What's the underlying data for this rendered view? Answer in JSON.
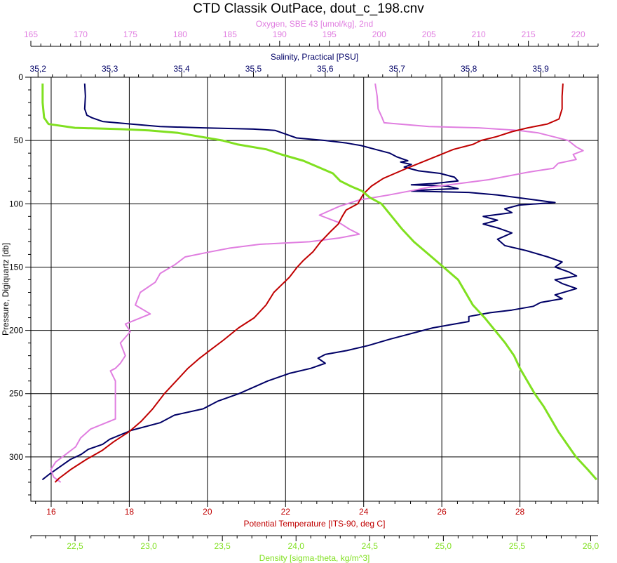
{
  "chart_data": {
    "type": "line",
    "title": "CTD Classik OutPace, dout_c_198.cnv",
    "grid": true,
    "y_axis": {
      "label": "Pressure, Digiquartz [db]",
      "range": [
        0,
        335
      ],
      "ticks": [
        "0",
        "50",
        "100",
        "150",
        "200",
        "250",
        "300"
      ],
      "inverted": true
    },
    "axes": {
      "oxygen": {
        "label": "Oxygen, SBE 43 [umol/kg], 2nd",
        "range": [
          165,
          222
        ],
        "ticks": [
          "165",
          "170",
          "175",
          "180",
          "185",
          "190",
          "195",
          "200",
          "205",
          "210",
          "215",
          "220"
        ],
        "color": "#e07ee0",
        "position": "top-outer"
      },
      "salinity": {
        "label": "Salinity, Practical [PSU]",
        "range": [
          35.19,
          35.98
        ],
        "ticks": [
          "35,2",
          "35,3",
          "35,4",
          "35,5",
          "35,6",
          "35,7",
          "35,8",
          "35,9"
        ],
        "color": "#000066",
        "position": "top-inner"
      },
      "temperature": {
        "label": "Potential Temperature [ITS-90, deg C]",
        "range": [
          15.48,
          30.0
        ],
        "ticks": [
          "16",
          "18",
          "20",
          "22",
          "24",
          "26",
          "28"
        ],
        "color": "#c00000",
        "position": "bottom-inner"
      },
      "density": {
        "label": "Density [sigma-theta, kg/m^3]",
        "range": [
          22.2,
          26.05
        ],
        "ticks": [
          "22,5",
          "23,0",
          "23,5",
          "24,0",
          "24,5",
          "25,0",
          "25,5",
          "26,0"
        ],
        "color": "#80e020",
        "position": "bottom-outer"
      }
    },
    "series": [
      {
        "name": "Salinity",
        "axis": "salinity",
        "color": "#000066",
        "points": [
          [
            35.265,
            5
          ],
          [
            35.266,
            15
          ],
          [
            35.265,
            25
          ],
          [
            35.268,
            30
          ],
          [
            35.275,
            32
          ],
          [
            35.29,
            35
          ],
          [
            35.33,
            37
          ],
          [
            35.37,
            39
          ],
          [
            35.43,
            40
          ],
          [
            35.5,
            41
          ],
          [
            35.53,
            42
          ],
          [
            35.545,
            45
          ],
          [
            35.56,
            48
          ],
          [
            35.6,
            50
          ],
          [
            35.63,
            52
          ],
          [
            35.65,
            54
          ],
          [
            35.67,
            57
          ],
          [
            35.69,
            60
          ],
          [
            35.7,
            63
          ],
          [
            35.715,
            66
          ],
          [
            35.705,
            67
          ],
          [
            35.72,
            69
          ],
          [
            35.71,
            71
          ],
          [
            35.73,
            74
          ],
          [
            35.76,
            76
          ],
          [
            35.78,
            79
          ],
          [
            35.785,
            82
          ],
          [
            35.75,
            84
          ],
          [
            35.72,
            85
          ],
          [
            35.77,
            86
          ],
          [
            35.785,
            88
          ],
          [
            35.74,
            89
          ],
          [
            35.72,
            90
          ],
          [
            35.8,
            91
          ],
          [
            35.84,
            93
          ],
          [
            35.88,
            96
          ],
          [
            35.92,
            99
          ],
          [
            35.87,
            101
          ],
          [
            35.85,
            104
          ],
          [
            35.86,
            107
          ],
          [
            35.82,
            110
          ],
          [
            35.84,
            113
          ],
          [
            35.82,
            116
          ],
          [
            35.84,
            119
          ],
          [
            35.86,
            123
          ],
          [
            35.84,
            128
          ],
          [
            35.85,
            133
          ],
          [
            35.88,
            137
          ],
          [
            35.91,
            142
          ],
          [
            35.93,
            146
          ],
          [
            35.92,
            150
          ],
          [
            35.94,
            154
          ],
          [
            35.95,
            157
          ],
          [
            35.92,
            160
          ],
          [
            35.93,
            163
          ],
          [
            35.95,
            167
          ],
          [
            35.92,
            172
          ],
          [
            35.93,
            175
          ],
          [
            35.9,
            178
          ],
          [
            35.89,
            181
          ],
          [
            35.86,
            184
          ],
          [
            35.83,
            186
          ],
          [
            35.8,
            189
          ],
          [
            35.8,
            193
          ],
          [
            35.77,
            196
          ],
          [
            35.75,
            198
          ],
          [
            35.73,
            201
          ],
          [
            35.71,
            204
          ],
          [
            35.69,
            207
          ],
          [
            35.66,
            212
          ],
          [
            35.63,
            216
          ],
          [
            35.6,
            219
          ],
          [
            35.59,
            222
          ],
          [
            35.6,
            226
          ],
          [
            35.58,
            230
          ],
          [
            35.55,
            234
          ],
          [
            35.52,
            240
          ],
          [
            35.5,
            245
          ],
          [
            35.48,
            250
          ],
          [
            35.45,
            256
          ],
          [
            35.43,
            262
          ],
          [
            35.39,
            267
          ],
          [
            35.37,
            273
          ],
          [
            35.33,
            279
          ],
          [
            35.3,
            286
          ],
          [
            35.29,
            290
          ],
          [
            35.27,
            294
          ],
          [
            35.26,
            298
          ],
          [
            35.245,
            302
          ],
          [
            35.235,
            306
          ],
          [
            35.225,
            310
          ],
          [
            35.215,
            314
          ],
          [
            35.206,
            318
          ]
        ]
      },
      {
        "name": "Oxygen",
        "axis": "oxygen",
        "color": "#e07ee0",
        "points": [
          [
            199.6,
            5
          ],
          [
            199.8,
            15
          ],
          [
            199.9,
            25
          ],
          [
            200.3,
            32
          ],
          [
            200.5,
            36
          ],
          [
            205,
            39
          ],
          [
            210,
            40
          ],
          [
            214,
            42
          ],
          [
            216,
            44
          ],
          [
            217.5,
            47
          ],
          [
            219,
            50
          ],
          [
            219.8,
            55
          ],
          [
            220.5,
            58
          ],
          [
            219.5,
            61
          ],
          [
            219.8,
            65
          ],
          [
            218,
            68
          ],
          [
            217.5,
            72
          ],
          [
            215,
            75
          ],
          [
            213,
            78
          ],
          [
            211,
            81
          ],
          [
            208,
            84
          ],
          [
            205,
            87
          ],
          [
            203,
            90
          ],
          [
            201,
            93
          ],
          [
            198,
            97
          ],
          [
            196,
            102
          ],
          [
            194,
            109
          ],
          [
            196,
            115
          ],
          [
            197,
            120
          ],
          [
            198,
            124
          ],
          [
            196,
            127
          ],
          [
            193,
            130
          ],
          [
            188,
            132
          ],
          [
            185,
            135
          ],
          [
            183,
            138
          ],
          [
            180.5,
            142
          ],
          [
            179.5,
            148
          ],
          [
            178,
            155
          ],
          [
            177.5,
            162
          ],
          [
            176,
            170
          ],
          [
            175.5,
            180
          ],
          [
            177,
            187
          ],
          [
            174.5,
            195
          ],
          [
            175,
            201
          ],
          [
            174,
            210
          ],
          [
            174.5,
            220
          ],
          [
            174,
            226
          ],
          [
            173.5,
            230
          ],
          [
            173,
            232
          ],
          [
            173.5,
            240
          ],
          [
            173.5,
            250
          ],
          [
            173.5,
            260
          ],
          [
            173.5,
            270
          ],
          [
            171,
            278
          ],
          [
            170,
            285
          ],
          [
            169.5,
            292
          ],
          [
            168.5,
            298
          ],
          [
            167.5,
            304
          ],
          [
            167,
            310
          ],
          [
            167.3,
            316
          ],
          [
            168,
            320
          ]
        ]
      },
      {
        "name": "Temperature",
        "axis": "temperature",
        "color": "#c00000",
        "points": [
          [
            29.1,
            5
          ],
          [
            29.08,
            15
          ],
          [
            29.08,
            25
          ],
          [
            29.0,
            33
          ],
          [
            28.7,
            37
          ],
          [
            28.2,
            40
          ],
          [
            27.8,
            43
          ],
          [
            27.4,
            47
          ],
          [
            27.0,
            50
          ],
          [
            26.8,
            53
          ],
          [
            26.3,
            57
          ],
          [
            25.9,
            62
          ],
          [
            25.5,
            67
          ],
          [
            25.1,
            72
          ],
          [
            24.8,
            76
          ],
          [
            24.5,
            80
          ],
          [
            24.2,
            86
          ],
          [
            24.0,
            92
          ],
          [
            23.85,
            100
          ],
          [
            23.55,
            105
          ],
          [
            23.45,
            110
          ],
          [
            23.35,
            116
          ],
          [
            23.15,
            122
          ],
          [
            22.9,
            130
          ],
          [
            22.7,
            138
          ],
          [
            22.45,
            145
          ],
          [
            22.3,
            150
          ],
          [
            22.1,
            158
          ],
          [
            21.9,
            164
          ],
          [
            21.7,
            170
          ],
          [
            21.5,
            180
          ],
          [
            21.2,
            190
          ],
          [
            20.8,
            198
          ],
          [
            20.4,
            208
          ],
          [
            20.1,
            215
          ],
          [
            19.8,
            222
          ],
          [
            19.5,
            230
          ],
          [
            19.2,
            240
          ],
          [
            18.9,
            250
          ],
          [
            18.6,
            262
          ],
          [
            18.3,
            272
          ],
          [
            18.0,
            280
          ],
          [
            17.6,
            288
          ],
          [
            17.3,
            295
          ],
          [
            16.9,
            302
          ],
          [
            16.5,
            310
          ],
          [
            16.2,
            317
          ],
          [
            16.1,
            320
          ]
        ]
      },
      {
        "name": "Density",
        "axis": "density",
        "color": "#80e020",
        "points": [
          [
            22.28,
            5
          ],
          [
            22.28,
            20
          ],
          [
            22.29,
            32
          ],
          [
            22.32,
            37
          ],
          [
            22.5,
            40
          ],
          [
            22.8,
            41
          ],
          [
            23.0,
            42
          ],
          [
            23.2,
            44
          ],
          [
            23.35,
            47
          ],
          [
            23.5,
            50
          ],
          [
            23.6,
            53
          ],
          [
            23.8,
            57
          ],
          [
            23.9,
            61
          ],
          [
            24.05,
            66
          ],
          [
            24.15,
            71
          ],
          [
            24.25,
            76
          ],
          [
            24.3,
            82
          ],
          [
            24.37,
            86
          ],
          [
            24.45,
            90
          ],
          [
            24.5,
            95
          ],
          [
            24.58,
            100
          ],
          [
            24.65,
            110
          ],
          [
            24.72,
            120
          ],
          [
            24.8,
            130
          ],
          [
            24.9,
            140
          ],
          [
            25.0,
            150
          ],
          [
            25.1,
            160
          ],
          [
            25.15,
            170
          ],
          [
            25.2,
            180
          ],
          [
            25.28,
            190
          ],
          [
            25.35,
            200
          ],
          [
            25.42,
            210
          ],
          [
            25.48,
            220
          ],
          [
            25.52,
            230
          ],
          [
            25.57,
            240
          ],
          [
            25.62,
            250
          ],
          [
            25.68,
            260
          ],
          [
            25.73,
            270
          ],
          [
            25.78,
            280
          ],
          [
            25.84,
            290
          ],
          [
            25.9,
            300
          ],
          [
            25.98,
            310
          ],
          [
            26.04,
            318
          ]
        ]
      }
    ]
  }
}
